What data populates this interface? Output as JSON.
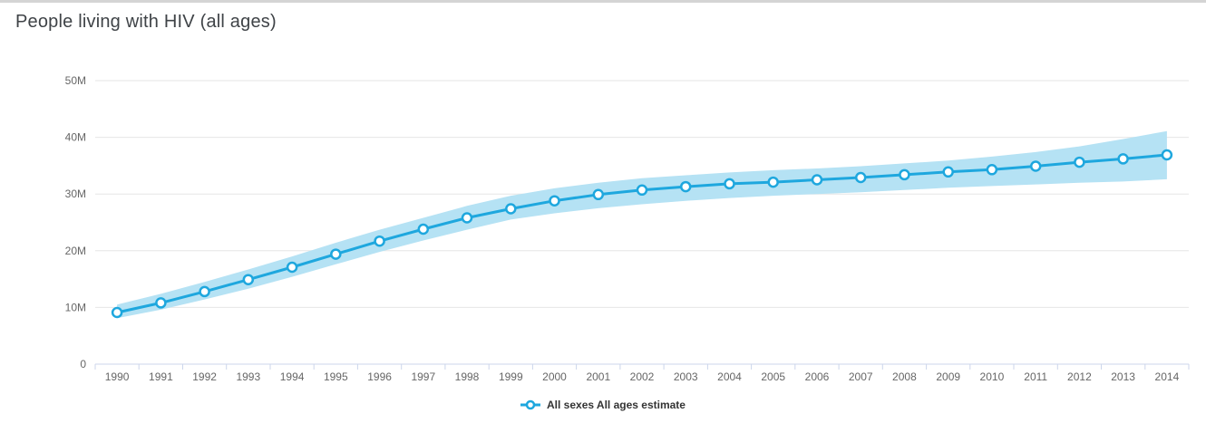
{
  "page": {
    "title": "People living with HIV (all ages)"
  },
  "legend": {
    "label": "All sexes All ages estimate"
  },
  "colors": {
    "line": "#1ea7de",
    "marker_fill": "#ffffff",
    "band": "#b5e2f4",
    "grid": "#e6e6e6",
    "axis": "#ccd6eb",
    "tick_label": "#666666",
    "title_text": "#3f4347",
    "legend_text": "#333333",
    "top_border": "#d4d4d4",
    "background": "#ffffff"
  },
  "chart_data": {
    "type": "line",
    "title": "People living with HIV (all ages)",
    "x": [
      1990,
      1991,
      1992,
      1993,
      1994,
      1995,
      1996,
      1997,
      1998,
      1999,
      2000,
      2001,
      2002,
      2003,
      2004,
      2005,
      2006,
      2007,
      2008,
      2009,
      2010,
      2011,
      2012,
      2013,
      2014
    ],
    "series": [
      {
        "name": "All sexes All ages estimate",
        "unit": "millions",
        "values": [
          9.1,
          10.8,
          12.8,
          14.9,
          17.1,
          19.4,
          21.7,
          23.8,
          25.8,
          27.4,
          28.8,
          29.9,
          30.7,
          31.3,
          31.8,
          32.1,
          32.5,
          32.9,
          33.4,
          33.9,
          34.3,
          34.9,
          35.6,
          36.2,
          36.9
        ]
      }
    ],
    "band": {
      "name": "uncertainty range",
      "upper": [
        10.5,
        12.4,
        14.5,
        16.7,
        19.0,
        21.4,
        23.7,
        25.8,
        27.9,
        29.7,
        31.0,
        32.0,
        32.8,
        33.3,
        33.8,
        34.2,
        34.5,
        34.9,
        35.4,
        35.9,
        36.6,
        37.4,
        38.4,
        39.7,
        41.1
      ],
      "lower": [
        8.1,
        9.6,
        11.4,
        13.3,
        15.4,
        17.6,
        19.8,
        21.8,
        23.7,
        25.5,
        26.6,
        27.5,
        28.2,
        28.8,
        29.3,
        29.7,
        30.0,
        30.3,
        30.7,
        31.1,
        31.4,
        31.7,
        32.0,
        32.2,
        32.6
      ]
    },
    "xlabel": "",
    "ylabel": "",
    "ylim": [
      0,
      50
    ],
    "yticks": [
      {
        "value": 0,
        "label": "0"
      },
      {
        "value": 10,
        "label": "10M"
      },
      {
        "value": 20,
        "label": "20M"
      },
      {
        "value": 30,
        "label": "30M"
      },
      {
        "value": 40,
        "label": "40M"
      },
      {
        "value": 50,
        "label": "50M"
      }
    ],
    "grid": true,
    "legend_position": "bottom-center",
    "marker": "open-circle"
  }
}
